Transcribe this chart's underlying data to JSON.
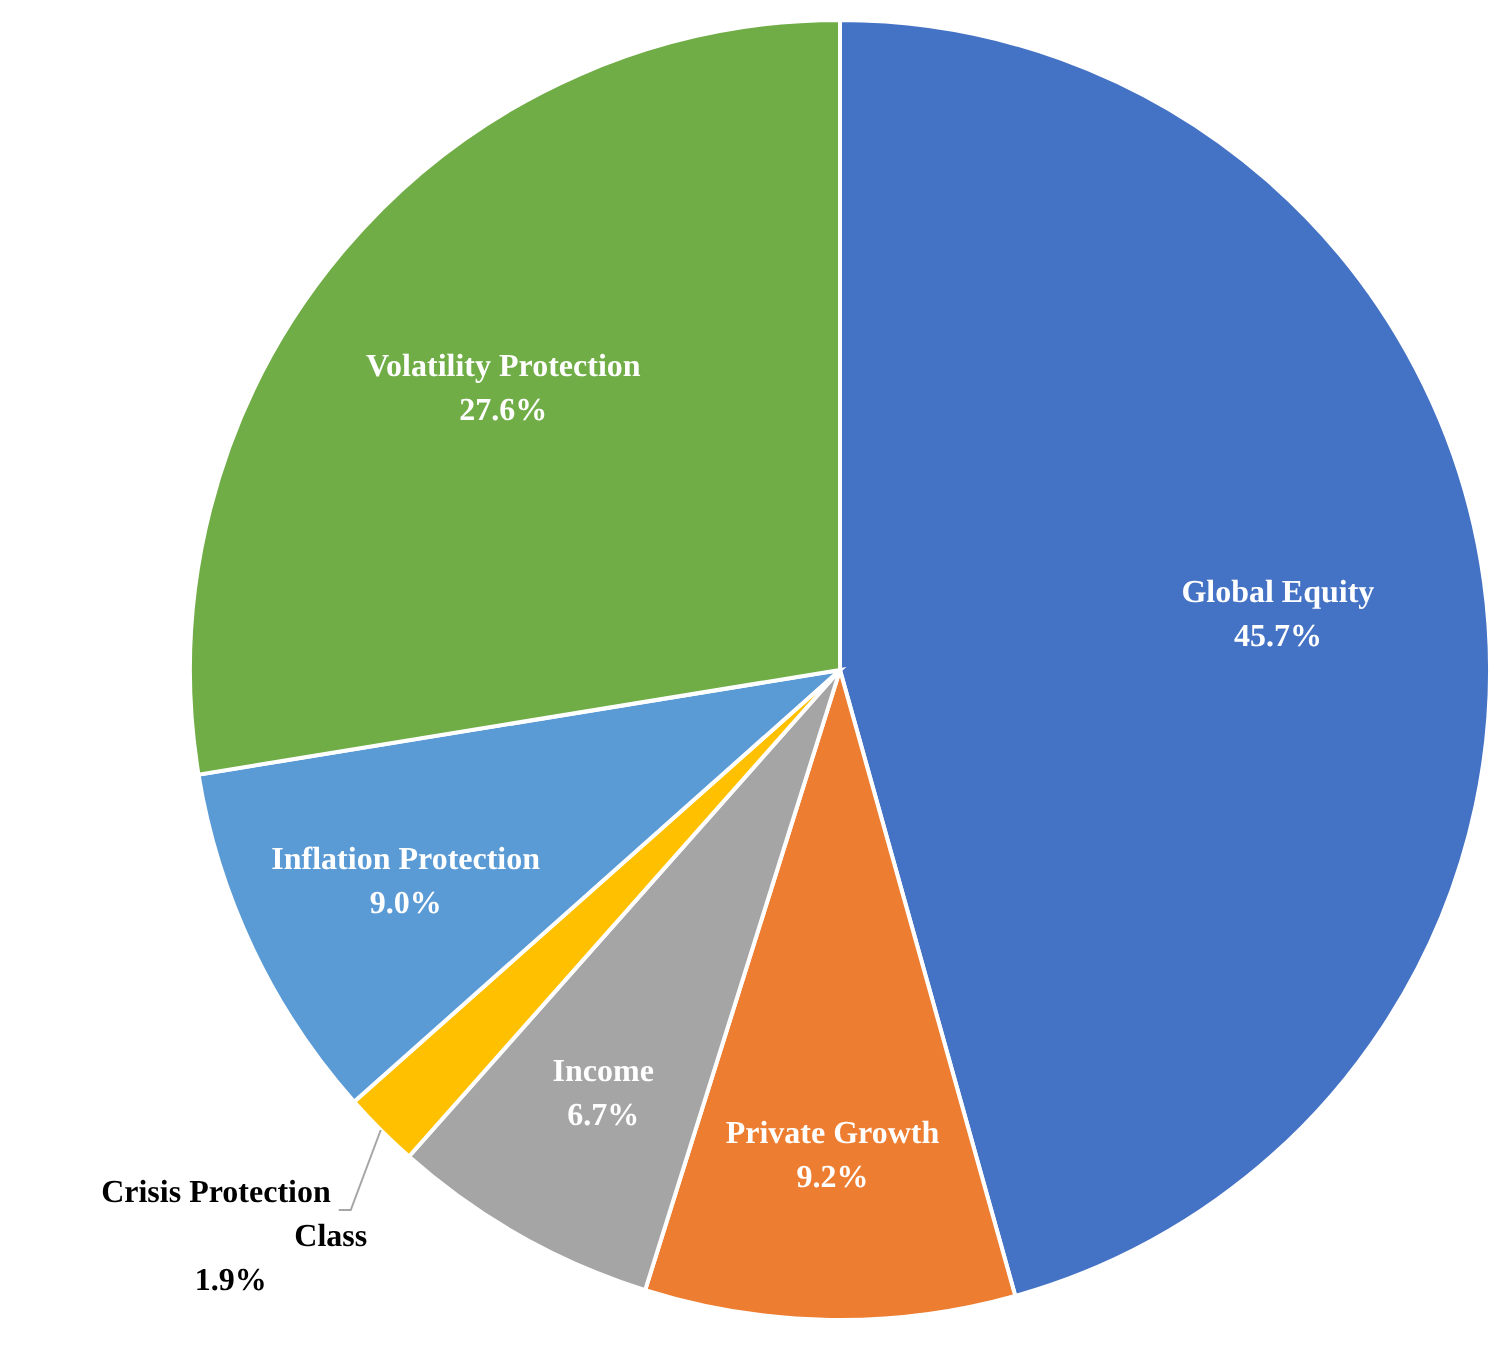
{
  "chart_data": {
    "type": "pie",
    "categories": [
      "Global Equity",
      "Private Growth",
      "Income",
      "Crisis Protection Class",
      "Inflation Protection",
      "Volatility Protection"
    ],
    "values": [
      45.7,
      9.2,
      6.7,
      1.9,
      9.0,
      27.6
    ],
    "colors": [
      "#4472c4",
      "#ed7d31",
      "#a5a5a5",
      "#ffc000",
      "#5b9bd5",
      "#70ad47"
    ],
    "value_labels": [
      "45.7%",
      "9.2%",
      "6.7%",
      "1.9%",
      "9.0%",
      "27.6%"
    ]
  }
}
